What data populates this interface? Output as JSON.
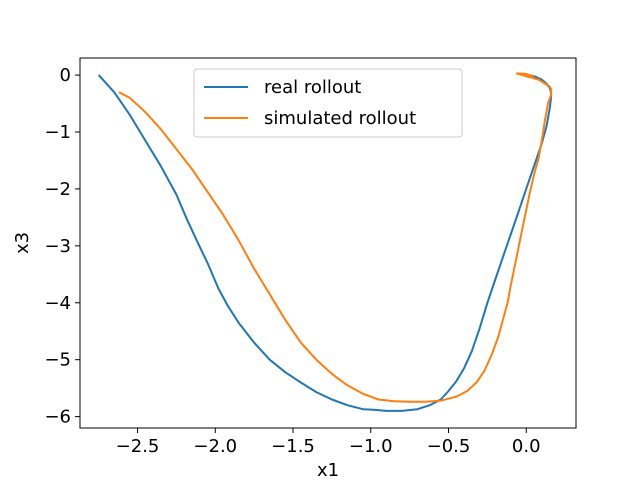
{
  "chart_data": {
    "type": "line",
    "xlabel": "x1",
    "ylabel": "x3",
    "xlim": [
      -2.87,
      0.32
    ],
    "ylim": [
      -6.2,
      0.3
    ],
    "xticks": [
      -2.5,
      -2.0,
      -1.5,
      -1.0,
      -0.5,
      0.0
    ],
    "xtick_labels": [
      "−2.5",
      "−2.0",
      "−1.5",
      "−1.0",
      "−0.5",
      "0.0"
    ],
    "yticks": [
      0,
      -1,
      -2,
      -3,
      -4,
      -5,
      -6
    ],
    "ytick_labels": [
      "0",
      "−1",
      "−2",
      "−3",
      "−4",
      "−5",
      "−6"
    ],
    "grid": false,
    "legend_position": "upper center",
    "series": [
      {
        "name": "real rollout",
        "color": "#1f77b4",
        "x": [
          -2.75,
          -2.65,
          -2.55,
          -2.45,
          -2.35,
          -2.25,
          -2.18,
          -2.12,
          -2.05,
          -1.98,
          -1.92,
          -1.85,
          -1.75,
          -1.65,
          -1.55,
          -1.45,
          -1.35,
          -1.25,
          -1.15,
          -1.05,
          -0.98,
          -0.9,
          -0.8,
          -0.7,
          -0.62,
          -0.55,
          -0.5,
          -0.45,
          -0.4,
          -0.35,
          -0.3,
          -0.25,
          -0.2,
          -0.15,
          -0.1,
          -0.05,
          0.0,
          0.05,
          0.1,
          0.13,
          0.15,
          0.16,
          0.16,
          0.15,
          0.13,
          0.1,
          0.05,
          0.02
        ],
        "y": [
          0.0,
          -0.3,
          -0.7,
          -1.15,
          -1.6,
          -2.1,
          -2.55,
          -2.9,
          -3.3,
          -3.75,
          -4.05,
          -4.35,
          -4.7,
          -5.0,
          -5.22,
          -5.4,
          -5.57,
          -5.7,
          -5.8,
          -5.87,
          -5.88,
          -5.9,
          -5.9,
          -5.87,
          -5.8,
          -5.7,
          -5.55,
          -5.38,
          -5.15,
          -4.85,
          -4.45,
          -4.0,
          -3.6,
          -3.2,
          -2.8,
          -2.4,
          -2.0,
          -1.6,
          -1.2,
          -0.9,
          -0.6,
          -0.4,
          -0.3,
          -0.22,
          -0.15,
          -0.08,
          -0.02,
          0.0
        ]
      },
      {
        "name": "simulated rollout",
        "color": "#ff7f0e",
        "x": [
          -2.62,
          -2.55,
          -2.45,
          -2.35,
          -2.25,
          -2.15,
          -2.05,
          -1.95,
          -1.85,
          -1.75,
          -1.65,
          -1.55,
          -1.45,
          -1.35,
          -1.25,
          -1.15,
          -1.05,
          -0.95,
          -0.85,
          -0.75,
          -0.65,
          -0.55,
          -0.45,
          -0.38,
          -0.32,
          -0.27,
          -0.22,
          -0.18,
          -0.15,
          -0.12,
          -0.1,
          -0.07,
          -0.04,
          -0.01,
          0.02,
          0.05,
          0.08,
          0.1,
          0.12,
          0.14,
          0.16,
          0.16,
          0.15,
          0.12,
          0.08,
          0.0,
          -0.06,
          0.0,
          0.05
        ],
        "y": [
          -0.3,
          -0.4,
          -0.65,
          -0.95,
          -1.3,
          -1.65,
          -2.05,
          -2.45,
          -2.9,
          -3.4,
          -3.85,
          -4.3,
          -4.7,
          -5.0,
          -5.25,
          -5.45,
          -5.6,
          -5.7,
          -5.73,
          -5.74,
          -5.74,
          -5.72,
          -5.65,
          -5.55,
          -5.4,
          -5.2,
          -4.9,
          -4.6,
          -4.3,
          -4.0,
          -3.7,
          -3.3,
          -2.9,
          -2.5,
          -2.1,
          -1.75,
          -1.45,
          -1.15,
          -0.8,
          -0.5,
          -0.35,
          -0.25,
          -0.2,
          -0.15,
          -0.08,
          -0.02,
          0.03,
          0.02,
          -0.03
        ]
      }
    ]
  }
}
